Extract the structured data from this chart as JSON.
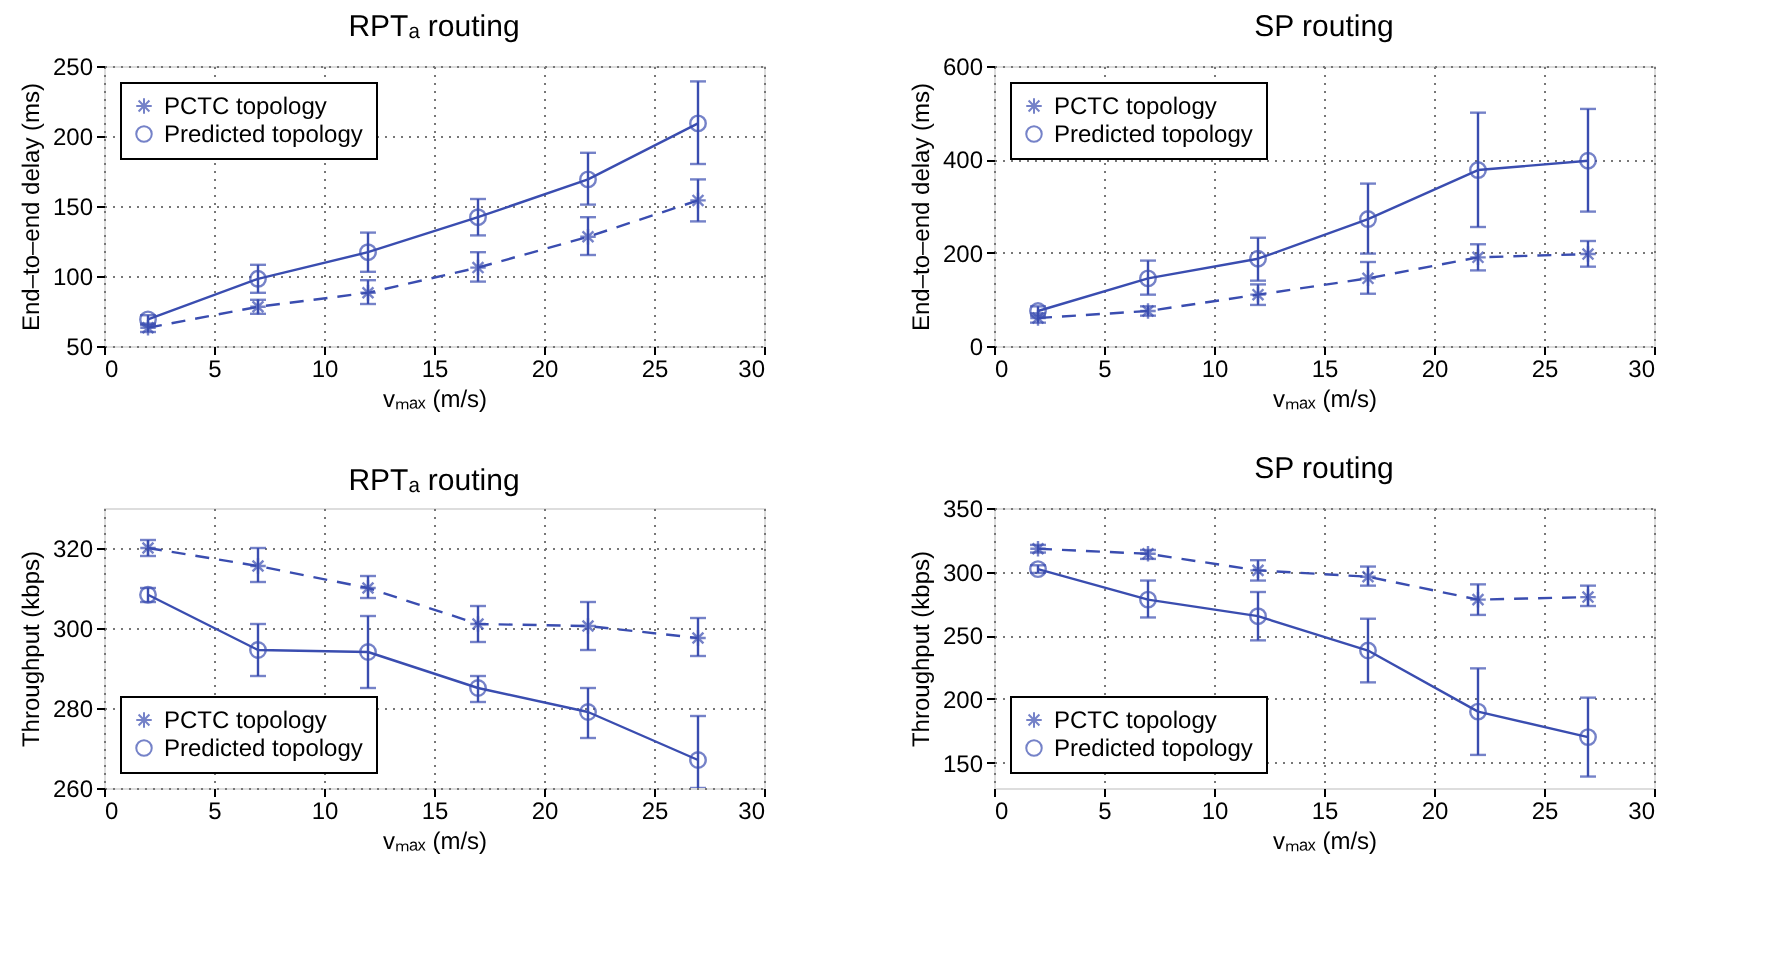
{
  "chart_data": [
    {
      "type": "line",
      "title": "RPTₐ routing",
      "xlabel": "vₘₐₓ (m/s)",
      "ylabel": "End–to–end delay (ms)",
      "x": [
        2,
        7,
        12,
        17,
        22,
        27
      ],
      "xlim": [
        0,
        30
      ],
      "xticks": [
        0,
        5,
        10,
        15,
        20,
        25,
        30
      ],
      "ylim": [
        50,
        250
      ],
      "yticks": [
        50,
        100,
        150,
        200,
        250
      ],
      "grid": true,
      "legend": "top left",
      "series": [
        {
          "name": "PCTC topology",
          "color": "#3a4db0",
          "marker": "cross",
          "line_style": "dashed",
          "values": [
            63,
            78,
            88,
            106,
            128,
            154
          ],
          "errors": [
            [
              60,
              66
            ],
            [
              73,
              83
            ],
            [
              80,
              97
            ],
            [
              96,
              117
            ],
            [
              115,
              142
            ],
            [
              139,
              169
            ]
          ]
        },
        {
          "name": "Predicted topology",
          "color": "#3a4db0",
          "marker": "circle",
          "line_style": "solid",
          "values": [
            69,
            98,
            117,
            142,
            169,
            209
          ],
          "errors": [
            [
              65,
              72
            ],
            [
              88,
              108
            ],
            [
              103,
              131
            ],
            [
              129,
              155
            ],
            [
              151,
              188
            ],
            [
              180,
              239
            ]
          ]
        }
      ]
    },
    {
      "type": "line",
      "title": "SP routing",
      "xlabel": "vₘₐₓ (m/s)",
      "ylabel": "End–to–end delay (ms)",
      "x": [
        2,
        7,
        12,
        17,
        22,
        27
      ],
      "xlim": [
        0,
        30
      ],
      "xticks": [
        0,
        5,
        10,
        15,
        20,
        25,
        30
      ],
      "ylim": [
        0,
        600
      ],
      "yticks": [
        0,
        200,
        400,
        600
      ],
      "grid": true,
      "legend": "top left",
      "series": [
        {
          "name": "PCTC topology",
          "color": "#3a4db0",
          "marker": "cross",
          "line_style": "dashed",
          "values": [
            60,
            75,
            110,
            145,
            190,
            197
          ],
          "errors": [
            [
              50,
              70
            ],
            [
              65,
              85
            ],
            [
              88,
              132
            ],
            [
              112,
              180
            ],
            [
              162,
              218
            ],
            [
              170,
              225
            ]
          ]
        },
        {
          "name": "Predicted topology",
          "color": "#3a4db0",
          "marker": "circle",
          "line_style": "solid",
          "values": [
            75,
            145,
            187,
            272,
            377,
            397
          ],
          "errors": [
            [
              65,
              85
            ],
            [
              110,
              183
            ],
            [
              140,
              232
            ],
            [
              198,
              348
            ],
            [
              255,
              500
            ],
            [
              288,
              508
            ]
          ]
        }
      ]
    },
    {
      "type": "line",
      "title": "RPTₐ routing",
      "xlabel": "vₘₐₓ (m/s)",
      "ylabel": "Throughput (kbps)",
      "x": [
        2,
        7,
        12,
        17,
        22,
        27
      ],
      "xlim": [
        0,
        30
      ],
      "xticks": [
        0,
        5,
        10,
        15,
        20,
        25,
        30
      ],
      "ylim": [
        260,
        330
      ],
      "yticks": [
        260,
        280,
        300,
        320
      ],
      "grid": true,
      "legend": "bottom left",
      "series": [
        {
          "name": "PCTC topology",
          "color": "#3a4db0",
          "marker": "cross",
          "line_style": "dashed",
          "values": [
            320,
            315.5,
            310,
            301,
            300.5,
            297.5
          ],
          "errors": [
            [
              318,
              322
            ],
            [
              311.5,
              320
            ],
            [
              307.5,
              313
            ],
            [
              296.5,
              305.5
            ],
            [
              294.5,
              306.5
            ],
            [
              293,
              302.5
            ]
          ]
        },
        {
          "name": "Predicted topology",
          "color": "#3a4db0",
          "marker": "circle",
          "line_style": "solid",
          "values": [
            308.3,
            294.5,
            294,
            285,
            279,
            267
          ],
          "errors": [
            [
              306.5,
              310
            ],
            [
              288,
              301
            ],
            [
              285,
              303
            ],
            [
              281.5,
              288
            ],
            [
              272.5,
              285
            ],
            [
              260,
              278
            ]
          ]
        }
      ]
    },
    {
      "type": "line",
      "title": "SP routing",
      "xlabel": "vₘₐₓ (m/s)",
      "ylabel": "Throughput (kbps)",
      "x": [
        2,
        7,
        12,
        17,
        22,
        27
      ],
      "xlim": [
        0,
        30
      ],
      "xticks": [
        0,
        5,
        10,
        15,
        20,
        25,
        30
      ],
      "ylim": [
        130,
        350
      ],
      "yticks": [
        150,
        200,
        250,
        300,
        350
      ],
      "grid": true,
      "legend": "bottom left",
      "series": [
        {
          "name": "PCTC topology",
          "color": "#3a4db0",
          "marker": "cross",
          "line_style": "dashed",
          "values": [
            318,
            314,
            301,
            296,
            278,
            280
          ],
          "errors": [
            [
              315,
              321
            ],
            [
              310,
              317
            ],
            [
              293,
              309
            ],
            [
              289,
              304
            ],
            [
              266,
              290
            ],
            [
              273,
              289
            ]
          ]
        },
        {
          "name": "Predicted topology",
          "color": "#3a4db0",
          "marker": "circle",
          "line_style": "solid",
          "values": [
            302,
            278,
            265,
            238,
            190,
            170
          ],
          "errors": [
            [
              299,
              305
            ],
            [
              264,
              293
            ],
            [
              246,
              284
            ],
            [
              213,
              263
            ],
            [
              156,
              224
            ],
            [
              139,
              201
            ]
          ]
        }
      ]
    }
  ]
}
